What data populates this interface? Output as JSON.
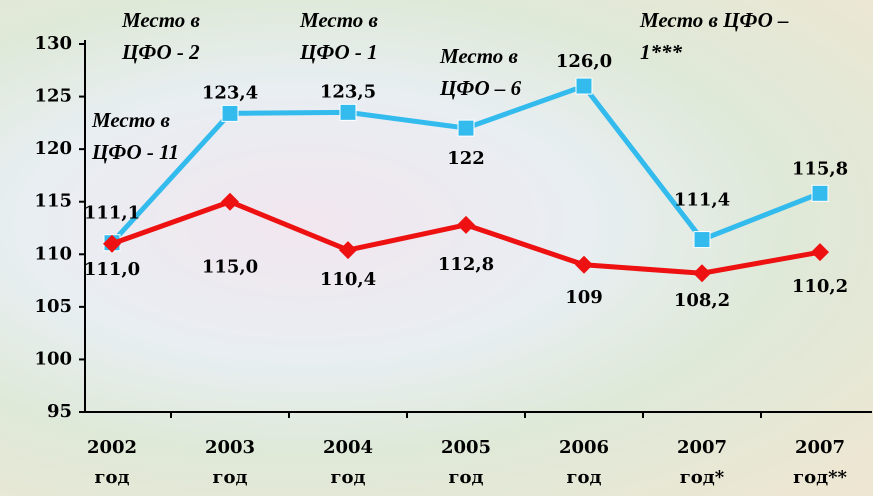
{
  "chart_data": {
    "type": "line",
    "categories": [
      "2002 год",
      "2003 год",
      "2004 год",
      "2005 год",
      "2006 год",
      "2007 год*",
      "2007 год**"
    ],
    "series": [
      {
        "color": "#33bbee",
        "values": [
          111.1,
          123.4,
          123.5,
          122,
          126.0,
          111.4,
          115.8
        ],
        "value_labels": [
          "111,1",
          "123,4",
          "123,5",
          "122",
          "126,0",
          "111,4",
          "115,8"
        ]
      },
      {
        "color": "#ee1111",
        "values": [
          111.0,
          115.0,
          110.4,
          112.8,
          109,
          108.2,
          110.2
        ],
        "value_labels": [
          "111,0",
          "115,0",
          "110,4",
          "112,8",
          "109",
          "108,2",
          "110,2"
        ]
      }
    ],
    "ylim": [
      95,
      130
    ],
    "yticks": [
      95,
      100,
      105,
      110,
      115,
      120,
      125,
      130
    ],
    "annotations": [
      "Место в ЦФО - 11",
      "Место в ЦФО - 2",
      "Место в ЦФО - 1",
      "Место в ЦФО – 6",
      "Место в ЦФО – 1***"
    ]
  }
}
